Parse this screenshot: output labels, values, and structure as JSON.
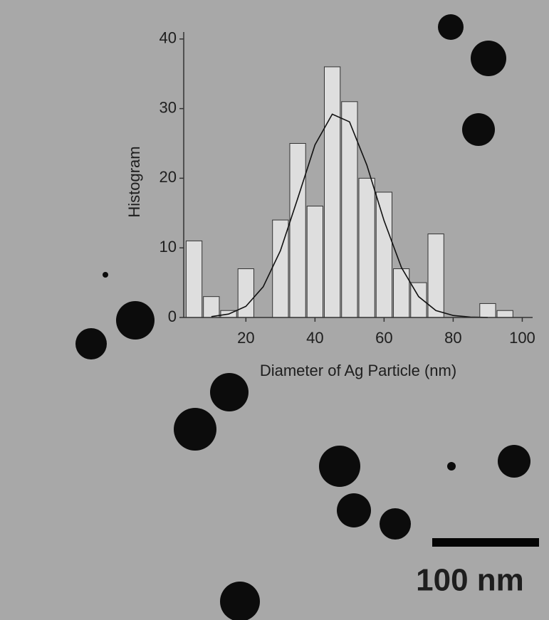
{
  "chart_data": {
    "type": "histogram",
    "xlabel": "Diameter of Ag Particle (nm)",
    "ylabel": "Histogram",
    "bins": [
      2.5,
      7.5,
      12.5,
      17.5,
      22.5,
      27.5,
      32.5,
      37.5,
      42.5,
      47.5,
      52.5,
      57.5,
      62.5,
      67.5,
      72.5,
      77.5,
      82.5,
      87.5,
      92.5,
      97.5
    ],
    "values": [
      11,
      3,
      1,
      7,
      0,
      14,
      25,
      16,
      36,
      31,
      20,
      18,
      7,
      5,
      12,
      0,
      0,
      2,
      1
    ],
    "color": "#dedede",
    "fit": {
      "x": [
        10,
        15,
        20,
        25,
        30,
        35,
        40,
        45,
        50,
        55,
        60,
        65,
        70,
        75,
        80,
        85,
        90
      ],
      "values": [
        0.12,
        0.49,
        1.6,
        4.4,
        9.6,
        17.1,
        24.8,
        29.2,
        28.1,
        21.9,
        13.9,
        7.2,
        3.0,
        1.0,
        0.29,
        0.06,
        0.01
      ],
      "color": "#111111"
    },
    "xlim": [
      2,
      103
    ],
    "ylim": [
      0,
      41
    ],
    "xticks": [
      20,
      40,
      60,
      80,
      100
    ],
    "yticks": [
      0,
      10,
      20,
      30,
      40
    ]
  },
  "scale_bar": {
    "label": "100 nm"
  }
}
